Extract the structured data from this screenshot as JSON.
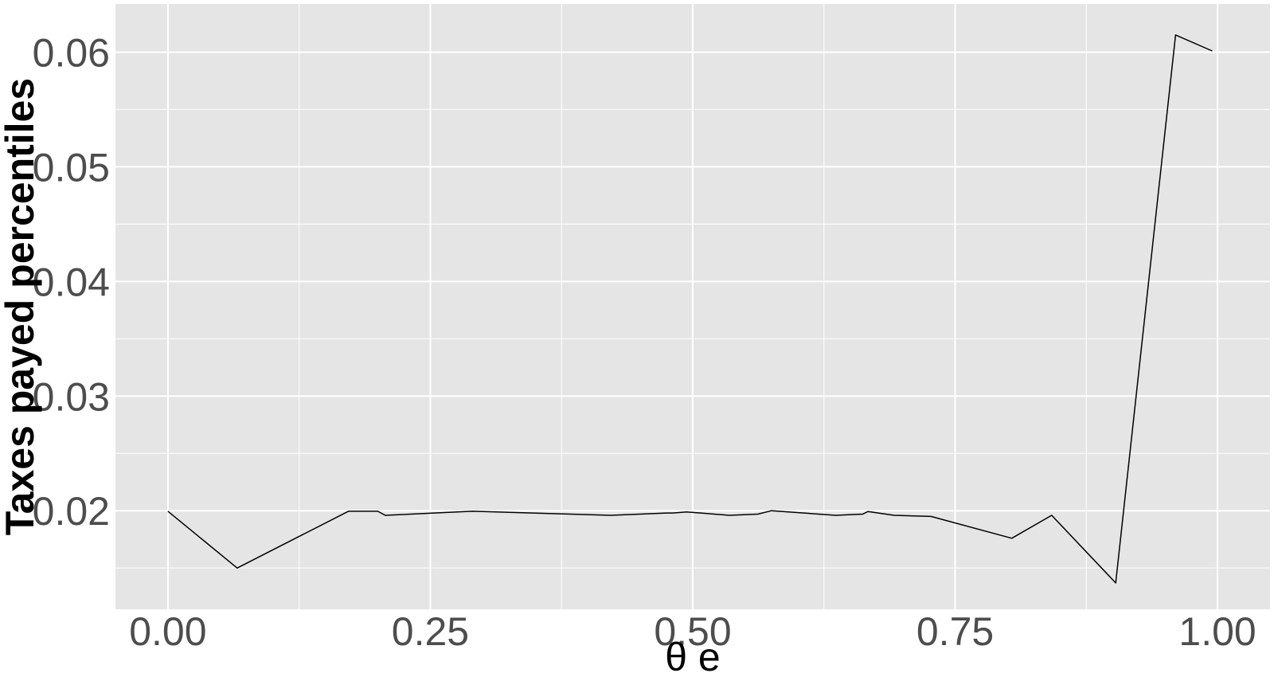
{
  "chart_data": {
    "type": "line",
    "title": "",
    "xlabel": "θ e",
    "ylabel": "Taxes payed percentiles",
    "xlim": [
      -0.05,
      1.05
    ],
    "ylim": [
      0.0114,
      0.0642
    ],
    "x_ticks": [
      0.0,
      0.25,
      0.5,
      0.75,
      1.0
    ],
    "x_tick_labels": [
      "0.00",
      "0.25",
      "0.50",
      "0.75",
      "1.00"
    ],
    "x_minor_ticks": [
      0.125,
      0.375,
      0.625,
      0.875
    ],
    "y_ticks": [
      0.02,
      0.03,
      0.04,
      0.05,
      0.06
    ],
    "y_tick_labels": [
      "0.02",
      "0.03",
      "0.04",
      "0.05",
      "0.06"
    ],
    "y_minor_ticks": [
      0.015,
      0.025,
      0.035,
      0.045,
      0.055
    ],
    "grid": true,
    "legend": "none",
    "colors": {
      "panel": "#e5e5e5",
      "grid": "#ffffff",
      "line": "#000000"
    },
    "series": [
      {
        "x": [
          0.0,
          0.066,
          0.172,
          0.2,
          0.207,
          0.29,
          0.422,
          0.475,
          0.481,
          0.494,
          0.535,
          0.562,
          0.575,
          0.636,
          0.662,
          0.667,
          0.692,
          0.727,
          0.804,
          0.842,
          0.903,
          0.96,
          0.995
        ],
        "y": [
          0.01995,
          0.015,
          0.01995,
          0.01995,
          0.0196,
          0.01995,
          0.0196,
          0.0198,
          0.0198,
          0.0199,
          0.0196,
          0.0197,
          0.02,
          0.0196,
          0.0197,
          0.01993,
          0.0196,
          0.0195,
          0.0176,
          0.0196,
          0.0137,
          0.0615,
          0.0601
        ]
      }
    ]
  }
}
